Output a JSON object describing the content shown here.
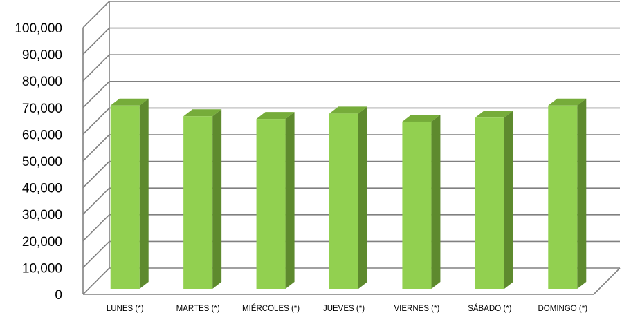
{
  "chart_data": {
    "type": "bar",
    "title": "",
    "xlabel": "",
    "ylabel": "",
    "categories": [
      "LUNES (*)",
      "MARTES (*)",
      "MIÉRCOLES (*)",
      "JUEVES (*)",
      "VIERNES (*)",
      "SÁBADO (*)",
      "DOMINGO (*)"
    ],
    "values": [
      70000,
      66000,
      65000,
      67000,
      64000,
      65500,
      70000
    ],
    "ylim": [
      0,
      100000
    ],
    "yticks": [
      0,
      10000,
      20000,
      30000,
      40000,
      50000,
      60000,
      70000,
      80000,
      90000,
      100000
    ],
    "ytick_labels": [
      "0",
      "10,000",
      "20,000",
      "30,000",
      "40,000",
      "50,000",
      "60,000",
      "70,000",
      "80,000",
      "90,000",
      "100,000"
    ],
    "grid": true,
    "style": "3d-column",
    "colors": {
      "bar_front": "#92D050",
      "bar_side": "#5E8A2E",
      "bar_top": "#76AC3A",
      "grid": "#808080"
    }
  }
}
